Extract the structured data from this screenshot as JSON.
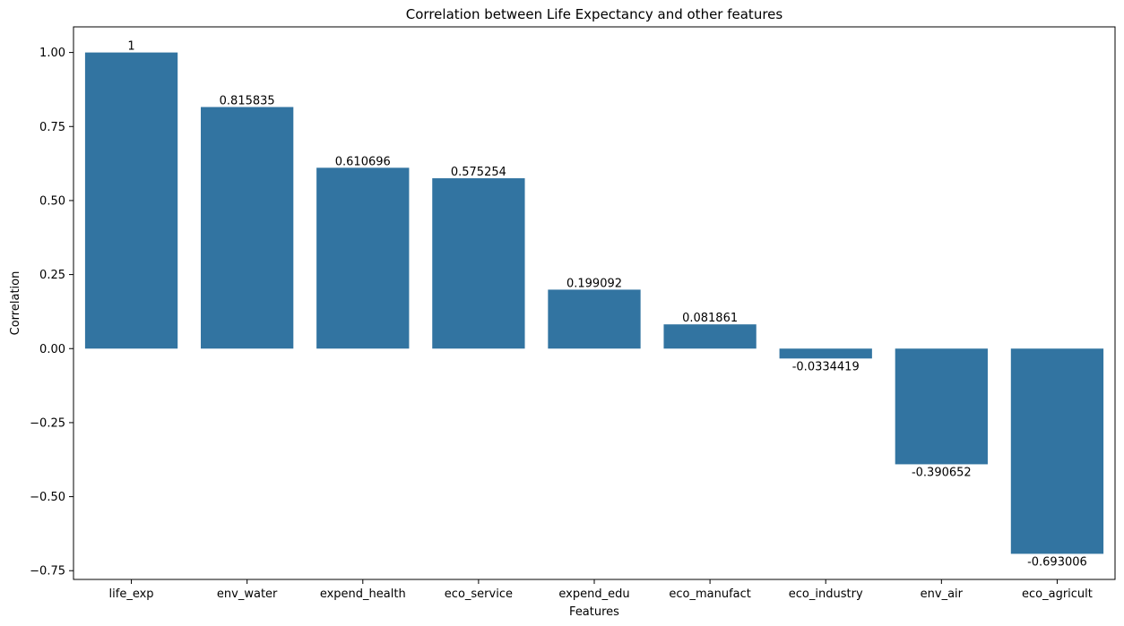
{
  "chart_data": {
    "type": "bar",
    "title": "Correlation between Life Expectancy and other features",
    "xlabel": "Features",
    "ylabel": "Correlation",
    "categories": [
      "life_exp",
      "env_water",
      "expend_health",
      "eco_service",
      "expend_edu",
      "eco_manufact",
      "eco_industry",
      "env_air",
      "eco_agricult"
    ],
    "values": [
      1,
      0.815835,
      0.610696,
      0.575254,
      0.199092,
      0.081861,
      -0.0334419,
      -0.390652,
      -0.693006
    ],
    "value_labels": [
      "1",
      "0.815835",
      "0.610696",
      "0.575254",
      "0.199092",
      "0.081861",
      "-0.0334419",
      "-0.390652",
      "-0.693006"
    ],
    "yticks": [
      -0.75,
      -0.5,
      -0.25,
      0,
      0.25,
      0.5,
      0.75,
      1
    ],
    "ytick_labels": [
      "−0.75",
      "−0.50",
      "−0.25",
      "0.00",
      "0.25",
      "0.50",
      "0.75",
      "1.00"
    ],
    "ylim": [
      -0.7795,
      1.0865
    ],
    "grid": false,
    "legend": "none",
    "bar_color": "#3274a1"
  }
}
